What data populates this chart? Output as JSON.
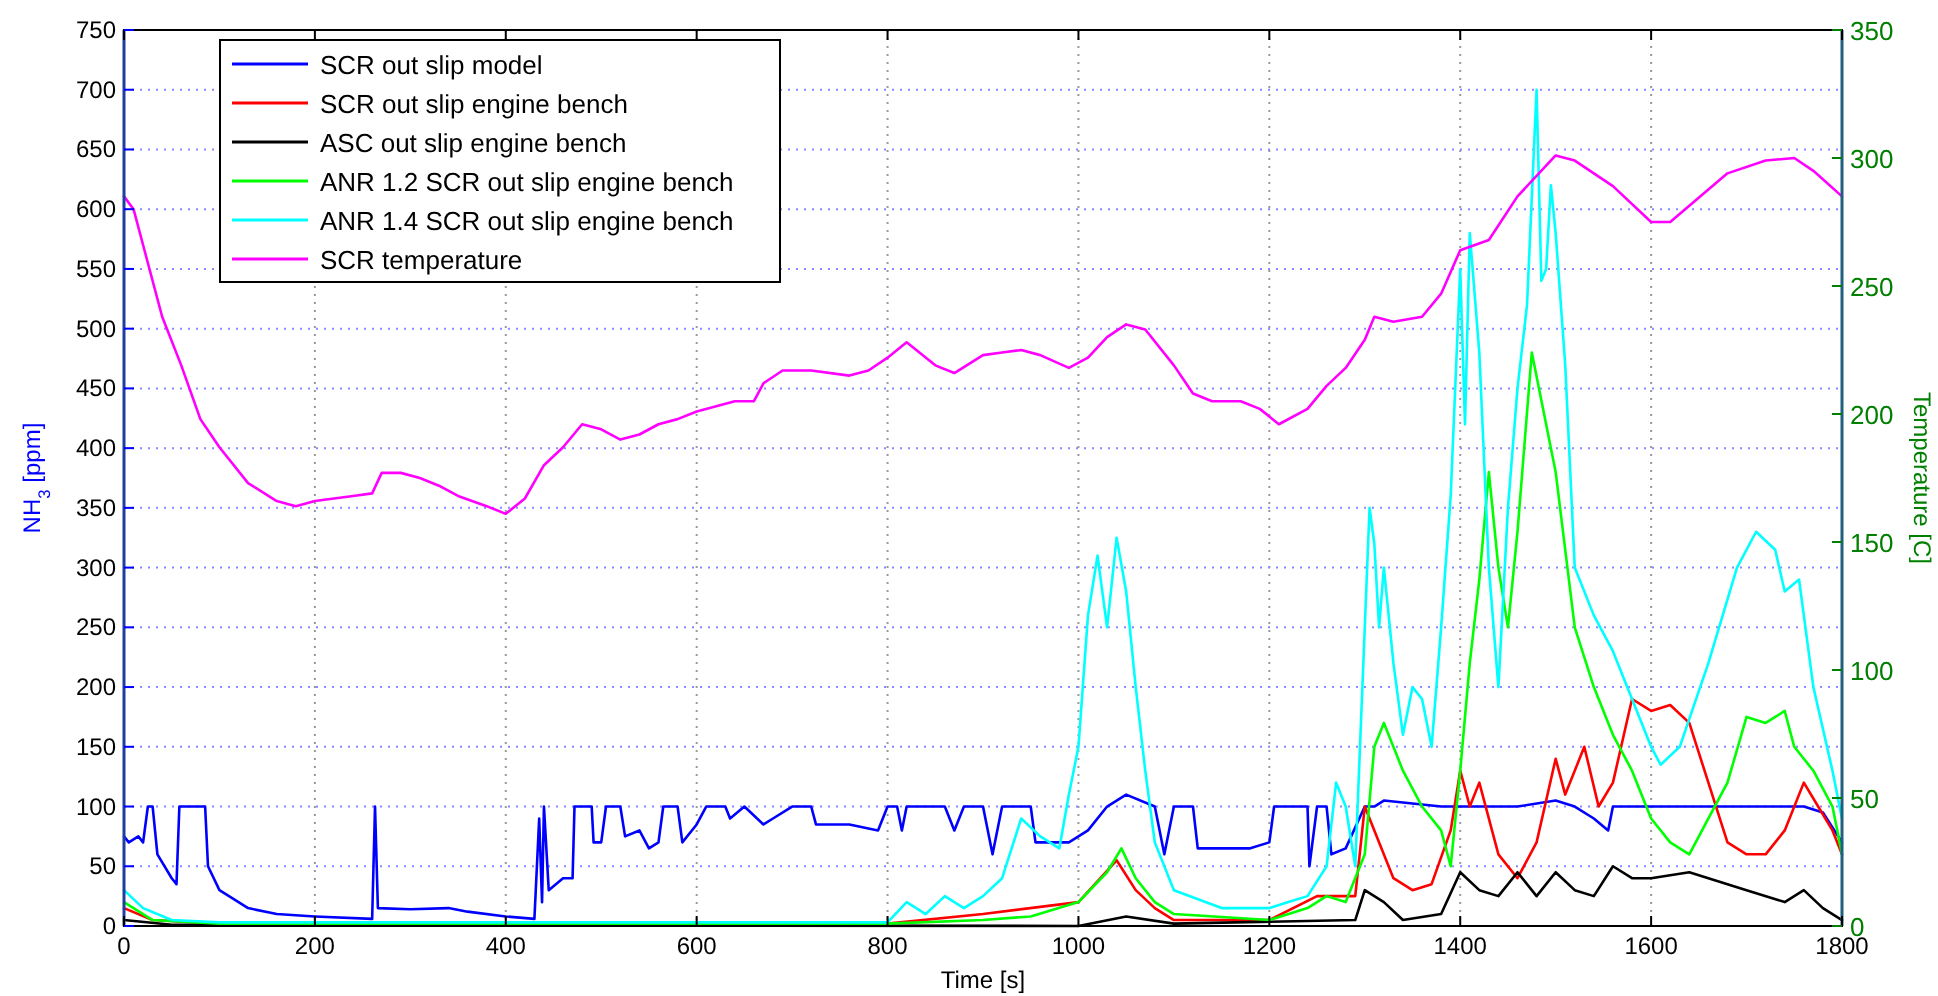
{
  "chart_data": {
    "type": "line",
    "xlabel": "Time [s]",
    "ylabel": "NH$_{3}$ [ppm]",
    "y2label": "Temperature [C]",
    "xlim": [
      0,
      1800
    ],
    "xticks": [
      0,
      200,
      400,
      600,
      800,
      1000,
      1200,
      1400,
      1600,
      1800
    ],
    "ylim": [
      0,
      750
    ],
    "yticks": [
      0,
      50,
      100,
      150,
      200,
      250,
      300,
      350,
      400,
      450,
      500,
      550,
      600,
      650,
      700,
      750
    ],
    "y2lim": [
      0,
      350
    ],
    "y2ticks": [
      0,
      50,
      100,
      150,
      200,
      250,
      300,
      350
    ],
    "grid": true,
    "legend": "top left",
    "line_style": "solid",
    "marker": "none",
    "series": [
      {
        "name": "SCR out slip model",
        "color": "#0000ff",
        "x": [
          0,
          5,
          15,
          20,
          25,
          30,
          35,
          50,
          55,
          58,
          85,
          88,
          100,
          130,
          160,
          200,
          260,
          263,
          266,
          300,
          340,
          360,
          400,
          430,
          435,
          438,
          440,
          445,
          460,
          470,
          472,
          490,
          492,
          500,
          505,
          520,
          525,
          540,
          550,
          560,
          565,
          580,
          585,
          600,
          610,
          630,
          635,
          650,
          670,
          680,
          700,
          720,
          725,
          760,
          790,
          800,
          810,
          815,
          820,
          860,
          870,
          880,
          900,
          910,
          920,
          950,
          955,
          990,
          1010,
          1030,
          1050,
          1080,
          1090,
          1100,
          1120,
          1125,
          1180,
          1200,
          1205,
          1240,
          1242,
          1250,
          1260,
          1265,
          1280,
          1300,
          1310,
          1320,
          1380,
          1400,
          1460,
          1500,
          1520,
          1540,
          1555,
          1560,
          1700,
          1760,
          1780,
          1800
        ],
        "values": [
          75,
          70,
          75,
          70,
          100,
          100,
          60,
          40,
          35,
          100,
          100,
          50,
          30,
          15,
          10,
          8,
          6,
          100,
          15,
          14,
          15,
          12,
          8,
          6,
          90,
          20,
          100,
          30,
          40,
          40,
          100,
          100,
          70,
          70,
          100,
          100,
          75,
          80,
          65,
          70,
          100,
          100,
          70,
          85,
          100,
          100,
          90,
          100,
          85,
          90,
          100,
          100,
          85,
          85,
          80,
          100,
          100,
          80,
          100,
          100,
          80,
          100,
          100,
          60,
          100,
          100,
          70,
          70,
          80,
          100,
          110,
          100,
          60,
          100,
          100,
          65,
          65,
          70,
          100,
          100,
          50,
          100,
          100,
          60,
          65,
          100,
          100,
          105,
          100,
          100,
          100,
          105,
          100,
          90,
          80,
          100,
          100,
          100,
          95,
          70
        ]
      },
      {
        "name": "SCR out slip engine bench",
        "color": "#ff0000",
        "x": [
          0,
          30,
          100,
          800,
          900,
          1000,
          1040,
          1060,
          1080,
          1100,
          1200,
          1250,
          1290,
          1300,
          1310,
          1330,
          1350,
          1370,
          1390,
          1400,
          1410,
          1420,
          1440,
          1460,
          1480,
          1500,
          1510,
          1530,
          1545,
          1560,
          1580,
          1600,
          1620,
          1640,
          1660,
          1680,
          1700,
          1720,
          1740,
          1760,
          1775,
          1790,
          1800
        ],
        "values": [
          15,
          5,
          2,
          2,
          10,
          20,
          55,
          30,
          15,
          5,
          5,
          25,
          25,
          100,
          80,
          40,
          30,
          35,
          80,
          130,
          100,
          120,
          60,
          40,
          70,
          140,
          110,
          150,
          100,
          120,
          190,
          180,
          185,
          170,
          120,
          70,
          60,
          60,
          80,
          120,
          100,
          80,
          60
        ]
      },
      {
        "name": "ASC out slip engine bench",
        "color": "#000000",
        "x": [
          0,
          50,
          1000,
          1050,
          1100,
          1290,
          1300,
          1320,
          1340,
          1380,
          1400,
          1420,
          1440,
          1460,
          1480,
          1500,
          1520,
          1540,
          1560,
          1580,
          1600,
          1640,
          1700,
          1740,
          1760,
          1780,
          1800
        ],
        "values": [
          5,
          1,
          0,
          8,
          2,
          5,
          30,
          20,
          5,
          10,
          45,
          30,
          25,
          45,
          25,
          45,
          30,
          25,
          50,
          40,
          40,
          45,
          30,
          20,
          30,
          15,
          5
        ]
      },
      {
        "name": "ANR 1.2 SCR out slip engine bench",
        "color": "#00ff00",
        "x": [
          0,
          30,
          100,
          800,
          900,
          950,
          1000,
          1030,
          1045,
          1060,
          1080,
          1100,
          1200,
          1240,
          1260,
          1280,
          1300,
          1310,
          1320,
          1340,
          1360,
          1380,
          1390,
          1400,
          1410,
          1420,
          1430,
          1440,
          1450,
          1460,
          1475,
          1490,
          1500,
          1520,
          1540,
          1560,
          1580,
          1600,
          1620,
          1640,
          1680,
          1700,
          1720,
          1740,
          1750,
          1770,
          1790,
          1800
        ],
        "values": [
          20,
          5,
          2,
          2,
          5,
          8,
          20,
          45,
          65,
          40,
          20,
          10,
          5,
          15,
          25,
          20,
          60,
          150,
          170,
          130,
          100,
          80,
          50,
          130,
          220,
          290,
          380,
          300,
          250,
          330,
          480,
          420,
          380,
          250,
          200,
          160,
          130,
          90,
          70,
          60,
          120,
          175,
          170,
          180,
          150,
          130,
          100,
          60
        ]
      },
      {
        "name": "ANR 1.4 SCR out slip engine bench",
        "color": "#00ffff",
        "x": [
          0,
          20,
          50,
          100,
          800,
          820,
          840,
          860,
          880,
          900,
          920,
          940,
          960,
          980,
          990,
          1000,
          1010,
          1020,
          1030,
          1040,
          1050,
          1060,
          1070,
          1080,
          1100,
          1150,
          1200,
          1220,
          1240,
          1260,
          1270,
          1280,
          1290,
          1300,
          1305,
          1310,
          1315,
          1320,
          1330,
          1340,
          1350,
          1360,
          1370,
          1380,
          1390,
          1400,
          1405,
          1410,
          1420,
          1430,
          1440,
          1450,
          1460,
          1470,
          1480,
          1485,
          1490,
          1495,
          1500,
          1510,
          1520,
          1540,
          1560,
          1580,
          1600,
          1610,
          1630,
          1660,
          1690,
          1710,
          1730,
          1740,
          1755,
          1770,
          1790,
          1800
        ],
        "values": [
          30,
          15,
          5,
          3,
          3,
          20,
          10,
          25,
          15,
          25,
          40,
          90,
          75,
          65,
          110,
          150,
          260,
          310,
          250,
          325,
          280,
          200,
          130,
          70,
          30,
          15,
          15,
          20,
          25,
          50,
          120,
          100,
          50,
          250,
          350,
          320,
          250,
          300,
          220,
          160,
          200,
          190,
          150,
          250,
          360,
          550,
          420,
          580,
          480,
          300,
          200,
          350,
          450,
          520,
          700,
          540,
          550,
          620,
          580,
          470,
          300,
          260,
          230,
          190,
          150,
          135,
          150,
          220,
          300,
          330,
          315,
          280,
          290,
          200,
          130,
          90
        ]
      },
      {
        "name": "SCR temperature",
        "color": "#ff00ff",
        "axis": "y2",
        "x": [
          0,
          10,
          20,
          40,
          60,
          80,
          100,
          130,
          160,
          180,
          200,
          240,
          260,
          270,
          290,
          310,
          330,
          350,
          380,
          400,
          420,
          440,
          460,
          480,
          500,
          520,
          540,
          560,
          580,
          600,
          640,
          660,
          670,
          690,
          720,
          760,
          780,
          800,
          820,
          850,
          870,
          900,
          920,
          940,
          960,
          990,
          1010,
          1030,
          1050,
          1070,
          1100,
          1120,
          1140,
          1170,
          1190,
          1210,
          1240,
          1260,
          1280,
          1300,
          1310,
          1330,
          1360,
          1380,
          1400,
          1430,
          1460,
          1500,
          1520,
          1560,
          1600,
          1620,
          1680,
          1720,
          1750,
          1770,
          1800
        ],
        "values": [
          285,
          280,
          266,
          238,
          219,
          198,
          187,
          173,
          166,
          164,
          166,
          168,
          169,
          177,
          177,
          175,
          172,
          168,
          164,
          161,
          167,
          180,
          187,
          196,
          194,
          190,
          192,
          196,
          198,
          201,
          205,
          205,
          212,
          217,
          217,
          215,
          217,
          222,
          228,
          219,
          216,
          223,
          224,
          225,
          223,
          218,
          222,
          230,
          235,
          233,
          219,
          208,
          205,
          205,
          202,
          196,
          202,
          211,
          218,
          229,
          238,
          236,
          238,
          247,
          264,
          268,
          285,
          301,
          299,
          289,
          275,
          275,
          294,
          299,
          300,
          295,
          285
        ]
      }
    ]
  }
}
